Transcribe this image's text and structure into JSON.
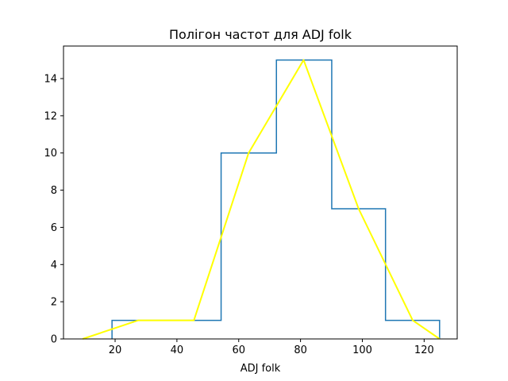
{
  "chart_data": {
    "type": "line",
    "title": "Полігон частот для ADJ folk",
    "xlabel": "ADJ folk",
    "ylabel": "",
    "xlim": [
      3.3,
      130.7
    ],
    "ylim": [
      0,
      15.75
    ],
    "xticks": [
      20,
      40,
      60,
      80,
      100,
      120
    ],
    "yticks": [
      0,
      2,
      4,
      6,
      8,
      10,
      12,
      14
    ],
    "grid": false,
    "histogram": {
      "name": "",
      "color": "#1f77b4",
      "bin_edges": [
        19.0,
        36.9,
        54.3,
        72.2,
        90.1,
        107.5,
        125.0
      ],
      "counts": [
        1,
        1,
        10,
        15,
        7,
        1
      ]
    },
    "polygon": {
      "name": "",
      "color": "#ffff00",
      "x": [
        9.5,
        27.5,
        45.5,
        63.2,
        81.0,
        98.8,
        116.3,
        125.0
      ],
      "y": [
        0,
        1,
        1,
        10,
        15,
        7,
        1,
        0
      ]
    }
  }
}
